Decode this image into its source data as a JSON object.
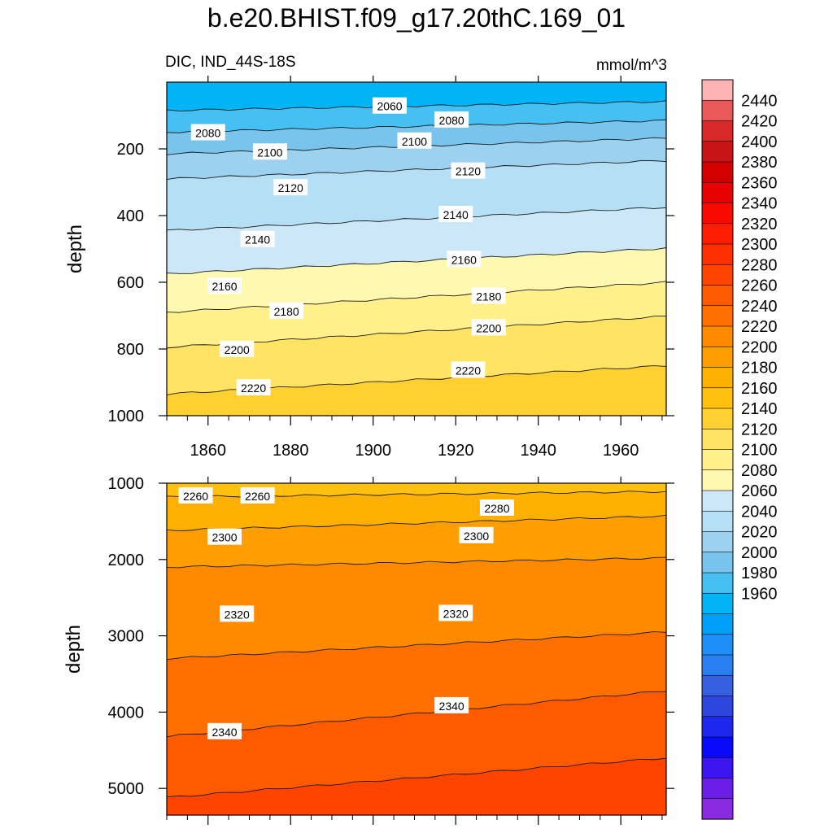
{
  "title": "b.e20.BHIST.f09_g17.20thC.169_01",
  "colors": {
    "levels": [
      1960,
      1980,
      2000,
      2020,
      2040,
      2060,
      2080,
      2100,
      2120,
      2140,
      2160,
      2180,
      2200,
      2220,
      2240,
      2260,
      2280,
      2300,
      2320,
      2340,
      2360,
      2380,
      2400,
      2420,
      2440
    ],
    "bins": [
      "#8a2be2",
      "#6a1ee8",
      "#3c14f0",
      "#0a0afa",
      "#1e28ec",
      "#2d46dc",
      "#3760e0",
      "#2a7ff0",
      "#1f8ff8",
      "#00a0f8",
      "#00b4f6",
      "#46c0f2",
      "#78c4ec",
      "#9cd2ef",
      "#b4dff4",
      "#cce8f8",
      "#fff8b0",
      "#fff08c",
      "#ffe464",
      "#ffd030",
      "#ffc010",
      "#ffb000",
      "#ff9e00",
      "#ff8a00",
      "#ff7000",
      "#ff5a00",
      "#ff4400",
      "#ff3000",
      "#ff1c00",
      "#f80a00",
      "#e60000",
      "#d20000",
      "#c81414",
      "#d82828",
      "#e85a5a",
      "#ffb4b4"
    ]
  },
  "colorbar": {
    "tick_labels": [
      "2440",
      "2420",
      "2400",
      "2380",
      "2360",
      "2340",
      "2320",
      "2300",
      "2280",
      "2260",
      "2240",
      "2220",
      "2200",
      "2180",
      "2160",
      "2140",
      "2120",
      "2100",
      "2080",
      "2060",
      "2040",
      "2020",
      "2000",
      "1980",
      "1960"
    ]
  },
  "chart_data": [
    {
      "type": "contour",
      "subtitle_left": "DIC, IND_44S-18S",
      "subtitle_right": "mmol/m^3",
      "ylabel": "depth",
      "x_ticks": [
        1860,
        1880,
        1900,
        1920,
        1940,
        1960
      ],
      "y_ticks": [
        200,
        400,
        600,
        800,
        1000
      ],
      "xlim": [
        1850,
        1971
      ],
      "ylim": [
        0,
        1000
      ],
      "y_reversed": true,
      "grid": false,
      "contour_lines": [
        {
          "value": 2060,
          "x": [
            1850,
            1971
          ],
          "depth": [
            85,
            58
          ]
        },
        {
          "value": 2080,
          "x": [
            1850,
            1971
          ],
          "depth": [
            150,
            115
          ]
        },
        {
          "value": 2100,
          "x": [
            1850,
            1971
          ],
          "depth": [
            215,
            168
          ]
        },
        {
          "value": 2120,
          "x": [
            1850,
            1971
          ],
          "depth": [
            290,
            235
          ]
        },
        {
          "value": 2140,
          "x": [
            1850,
            1971
          ],
          "depth": [
            445,
            375
          ]
        },
        {
          "value": 2160,
          "x": [
            1850,
            1971
          ],
          "depth": [
            575,
            498
          ]
        },
        {
          "value": 2180,
          "x": [
            1850,
            1971
          ],
          "depth": [
            690,
            600
          ]
        },
        {
          "value": 2200,
          "x": [
            1850,
            1971
          ],
          "depth": [
            795,
            702
          ]
        },
        {
          "value": 2220,
          "x": [
            1850,
            1971
          ],
          "depth": [
            935,
            850
          ]
        }
      ],
      "line_labels": [
        {
          "text": "2060",
          "x": 1904,
          "depth": 70
        },
        {
          "text": "2080",
          "x": 1860,
          "depth": 150
        },
        {
          "text": "2080",
          "x": 1919,
          "depth": 112
        },
        {
          "text": "2100",
          "x": 1875,
          "depth": 208
        },
        {
          "text": "2100",
          "x": 1910,
          "depth": 175
        },
        {
          "text": "2120",
          "x": 1880,
          "depth": 315
        },
        {
          "text": "2120",
          "x": 1923,
          "depth": 265
        },
        {
          "text": "2140",
          "x": 1872,
          "depth": 470
        },
        {
          "text": "2140",
          "x": 1920,
          "depth": 395
        },
        {
          "text": "2160",
          "x": 1864,
          "depth": 610
        },
        {
          "text": "2160",
          "x": 1922,
          "depth": 530
        },
        {
          "text": "2180",
          "x": 1879,
          "depth": 685
        },
        {
          "text": "2180",
          "x": 1928,
          "depth": 640
        },
        {
          "text": "2200",
          "x": 1867,
          "depth": 800
        },
        {
          "text": "2200",
          "x": 1928,
          "depth": 735
        },
        {
          "text": "2220",
          "x": 1871,
          "depth": 915
        },
        {
          "text": "2220",
          "x": 1923,
          "depth": 862
        }
      ]
    },
    {
      "type": "contour",
      "ylabel": "depth",
      "y_ticks": [
        1000,
        2000,
        3000,
        4000,
        5000
      ],
      "xlim": [
        1850,
        1971
      ],
      "ylim": [
        1000,
        5350
      ],
      "y_reversed": true,
      "grid": false,
      "contour_lines": [
        {
          "value": 2260,
          "x": [
            1850,
            1971
          ],
          "depth": [
            1180,
            1110
          ]
        },
        {
          "value": 2280,
          "x": [
            1850,
            1971
          ],
          "depth": [
            1620,
            1430
          ]
        },
        {
          "value": 2300,
          "x": [
            1850,
            1971
          ],
          "depth": [
            2100,
            1980
          ]
        },
        {
          "value": 2320,
          "x": [
            1850,
            1971
          ],
          "depth": [
            3300,
            2950
          ]
        },
        {
          "value": 2340,
          "x": [
            1850,
            1971
          ],
          "depth": [
            4320,
            3720
          ]
        },
        {
          "value": 2360,
          "x": [
            1850,
            1971
          ],
          "depth": [
            5120,
            4600
          ]
        }
      ],
      "line_labels": [
        {
          "text": "2260",
          "x": 1857,
          "depth": 1160
        },
        {
          "text": "2260",
          "x": 1872,
          "depth": 1160
        },
        {
          "text": "2280",
          "x": 1930,
          "depth": 1320
        },
        {
          "text": "2300",
          "x": 1864,
          "depth": 1700
        },
        {
          "text": "2300",
          "x": 1925,
          "depth": 1680
        },
        {
          "text": "2320",
          "x": 1867,
          "depth": 2710
        },
        {
          "text": "2320",
          "x": 1920,
          "depth": 2700
        },
        {
          "text": "2340",
          "x": 1864,
          "depth": 4250
        },
        {
          "text": "2340",
          "x": 1919,
          "depth": 3910
        }
      ]
    }
  ]
}
